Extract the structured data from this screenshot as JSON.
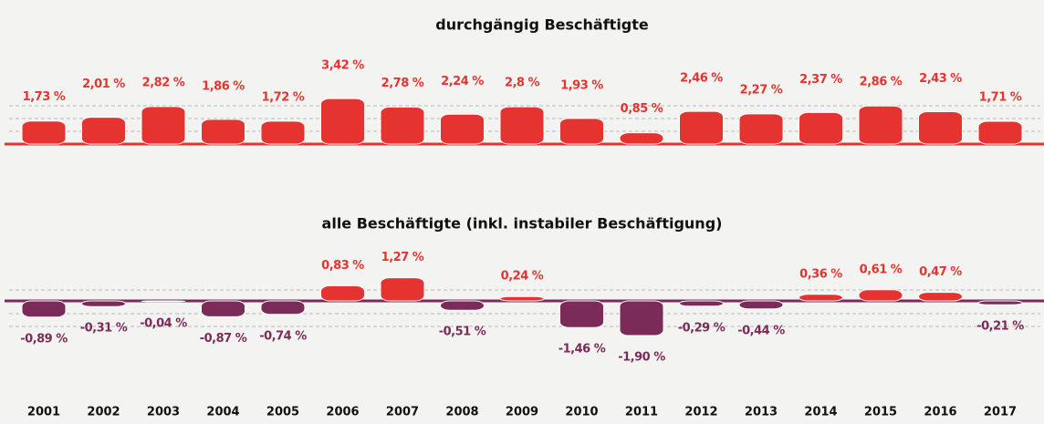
{
  "chart_data": {
    "type": "coin-bar",
    "categories": [
      "2001",
      "2002",
      "2003",
      "2004",
      "2005",
      "2006",
      "2007",
      "2008",
      "2009",
      "2010",
      "2011",
      "2012",
      "2013",
      "2014",
      "2015",
      "2016",
      "2017"
    ],
    "series": [
      {
        "name": "durchgängig Beschäftigte",
        "color": "#e5342f",
        "values": [
          1.73,
          2.01,
          2.82,
          1.86,
          1.72,
          3.42,
          2.78,
          2.24,
          2.8,
          1.93,
          0.85,
          2.46,
          2.27,
          2.37,
          2.86,
          2.43,
          1.71
        ],
        "value_labels": [
          "1,73 %",
          "2,01 %",
          "2,82 %",
          "1,86 %",
          "1,72 %",
          "3,42 %",
          "2,78 %",
          "2,24 %",
          "2,8 %",
          "1,93 %",
          "0,85 %",
          "2,46 %",
          "2,27 %",
          "2,37 %",
          "2,86 %",
          "2,43 %",
          "1,71 %"
        ]
      },
      {
        "name": "alle Beschäftigte (inkl. instabiler Beschäftigung)",
        "color": "#7a2b57",
        "positive_color": "#e5342f",
        "values": [
          -0.89,
          -0.31,
          -0.04,
          -0.87,
          -0.74,
          0.83,
          1.27,
          -0.51,
          0.24,
          -1.46,
          -1.9,
          -0.29,
          -0.44,
          0.36,
          0.61,
          0.47,
          -0.21
        ],
        "value_labels": [
          "-0,89 %",
          "-0,31 %",
          "-0,04 %",
          "-0,87 %",
          "-0,74 %",
          "0,83 %",
          "1,27 %",
          "-0,51 %",
          "0,24 %",
          "-1,46 %",
          "-1,90 %",
          "-0,29 %",
          "-0,44 %",
          "0,36 %",
          "0,61 %",
          "0,47 %",
          "-0,21 %"
        ]
      }
    ]
  }
}
